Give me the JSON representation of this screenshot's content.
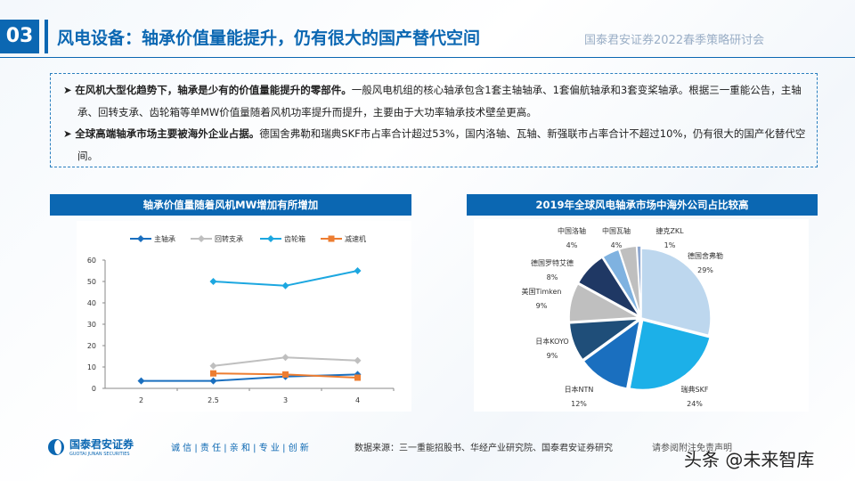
{
  "header": {
    "number": "03",
    "title": "风电设备：轴承价值量能提升，仍有很大的国产替代空间",
    "org": "国泰君安证券2022春季策略研讨会"
  },
  "bullets": [
    {
      "bold": "在风机大型化趋势下，轴承是少有的价值量能提升的零部件。",
      "text": "一般风电机组的核心轴承包含1套主轴轴承、1套偏航轴承和3套变桨轴承。根据三一重能公告，主轴承、回转支承、齿轮箱等单MW价值量随着风机功率提升而提升，主要由于大功率轴承技术壁垒更高。"
    },
    {
      "bold": "全球高端轴承市场主要被海外企业占据。",
      "text": "德国舍弗勒和瑞典SKF市占率合计超过53%，国内洛轴、瓦轴、新强联市占率合计不超过10%，仍有很大的国产化替代空间。"
    }
  ],
  "chart_data": [
    {
      "type": "line",
      "title": "轴承价值量随着风机MW增加有所增加",
      "categories": [
        "2",
        "2.5",
        "3",
        "4"
      ],
      "ylim": [
        0,
        60
      ],
      "yticks": [
        "0",
        "10",
        "20",
        "30",
        "40",
        "50",
        "60"
      ],
      "legend": "top",
      "series": [
        {
          "name": "主轴承",
          "color": "#1a6fbf",
          "marker": "diamond",
          "values": [
            3.5,
            3.5,
            5.5,
            6.5
          ]
        },
        {
          "name": "回转支承",
          "color": "#bfbfbf",
          "marker": "diamond",
          "values": [
            null,
            10.5,
            14.5,
            13
          ]
        },
        {
          "name": "齿轮箱",
          "color": "#1ca7e0",
          "marker": "diamond",
          "values": [
            null,
            50,
            48,
            55
          ]
        },
        {
          "name": "减速机",
          "color": "#ed7d31",
          "marker": "square",
          "values": [
            null,
            7,
            6.5,
            5
          ]
        }
      ]
    },
    {
      "type": "pie",
      "title": "2019年全球风电轴承市场中海外公司占比较高",
      "slices": [
        {
          "label": "德国舍弗勒",
          "value": 29,
          "pct": "29%",
          "color": "#bdd7ee"
        },
        {
          "label": "瑞典SKF",
          "value": 24,
          "pct": "24%",
          "color": "#1cb0e8"
        },
        {
          "label": "日本NTN",
          "value": 12,
          "pct": "12%",
          "color": "#1a6fbf"
        },
        {
          "label": "日本KOYO",
          "value": 9,
          "pct": "9%",
          "color": "#1f4e79"
        },
        {
          "label": "美国Timken",
          "value": 9,
          "pct": "9%",
          "color": "#bfbfbf"
        },
        {
          "label": "德国罗特艾德",
          "value": 8,
          "pct": "8%",
          "color": "#1f3864"
        },
        {
          "label": "中国洛轴",
          "value": 4,
          "pct": "4%",
          "color": "#7fb2e0"
        },
        {
          "label": "中国瓦轴",
          "value": 4,
          "pct": "4%",
          "color": "#bfbfbf"
        },
        {
          "label": "捷克ZKL",
          "value": 1,
          "pct": "1%",
          "color": "#8fa8d0"
        }
      ]
    }
  ],
  "footer": {
    "logo_cn": "国泰君安证券",
    "logo_en": "GUOTAI JUNAN SECURITIES",
    "motto": "诚 信 | 责 任 | 亲 和 | 专 业 | 创 新",
    "source": "数据来源：三一重能招股书、华经产业研究院、国泰君安证券研究",
    "disclaimer": "请参阅附注免责声明",
    "watermark": "头条 @未来智库"
  }
}
